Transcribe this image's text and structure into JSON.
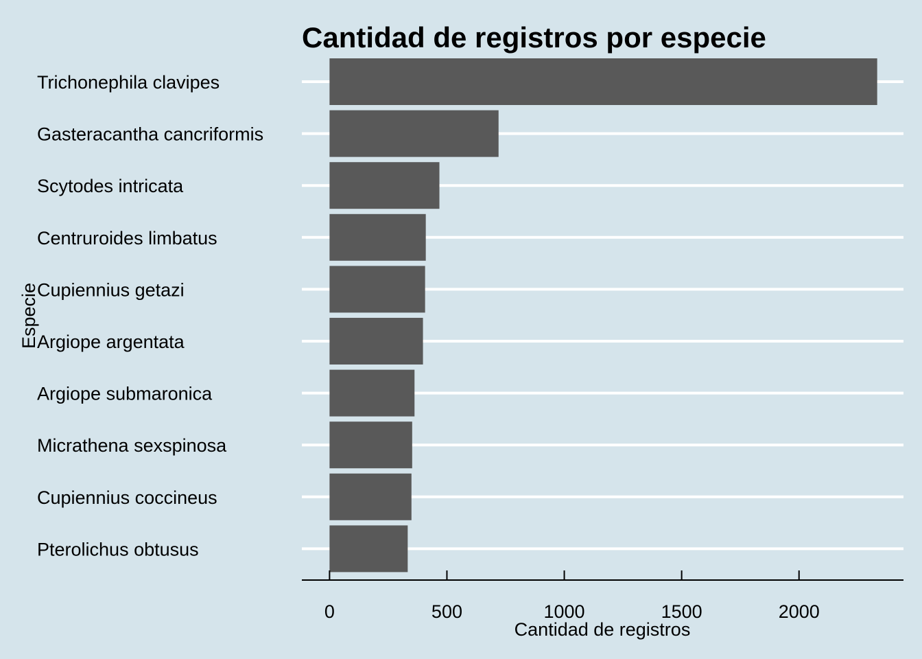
{
  "chart_data": {
    "type": "bar",
    "orientation": "horizontal",
    "title": "Cantidad de registros por especie",
    "xlabel": "Cantidad de registros",
    "ylabel": "Especie",
    "categories": [
      "Trichonephila clavipes",
      "Gasteracantha cancriformis",
      "Scytodes intricata",
      "Centruroides limbatus",
      "Cupiennius getazi",
      "Argiope argentata",
      "Argiope submaronica",
      "Micrathena sexspinosa",
      "Cupiennius coccineus",
      "Pterolichus obtusus"
    ],
    "values": [
      2333,
      720,
      468,
      410,
      407,
      398,
      362,
      352,
      349,
      333
    ],
    "xlim": [
      -118,
      2445
    ],
    "xticks": [
      0,
      500,
      1000,
      1500,
      2000
    ],
    "xtick_labels": [
      "0",
      "500",
      "1000",
      "1500",
      "2000"
    ],
    "grid": "horizontal-major",
    "legend": "none",
    "colors": {
      "background": "#d5e4eb",
      "bar": "#595959",
      "grid": "#ffffff",
      "axis": "#000000"
    }
  }
}
